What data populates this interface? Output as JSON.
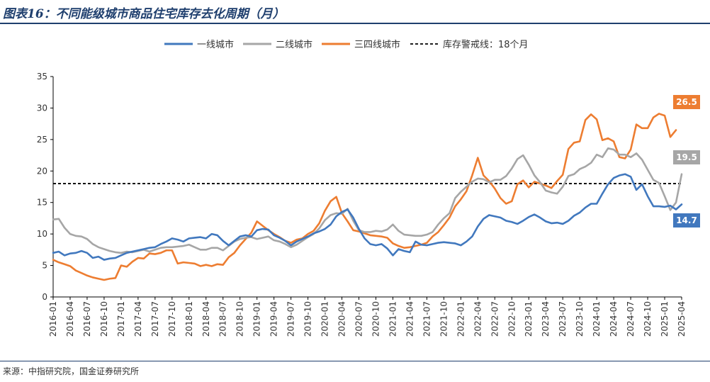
{
  "page": {
    "title": "图表16：不同能级城市商品住宅库存去化周期（月）",
    "source": "来源：中指研究院，国金证券研究所"
  },
  "chart_data": {
    "type": "line",
    "title": "图表16：不同能级城市商品住宅库存去化周期（月）",
    "xlabel": "",
    "ylabel": "",
    "ylim": [
      0,
      35
    ],
    "yticks": [
      0,
      5,
      10,
      15,
      20,
      25,
      30,
      35
    ],
    "grid": false,
    "legend_position": "top-center",
    "x_start": "2016-01",
    "x_tick_labels": [
      "2016-01",
      "2016-04",
      "2016-07",
      "2016-10",
      "2017-01",
      "2017-04",
      "2017-07",
      "2017-10",
      "2018-01",
      "2018-04",
      "2018-07",
      "2018-10",
      "2019-01",
      "2019-04",
      "2019-07",
      "2019-10",
      "2020-01",
      "2020-04",
      "2020-07",
      "2020-10",
      "2021-01",
      "2021-04",
      "2021-07",
      "2021-10",
      "2022-01",
      "2022-04",
      "2022-07",
      "2022-10",
      "2023-01",
      "2023-04",
      "2023-07",
      "2023-10",
      "2024-01",
      "2024-04",
      "2024-07",
      "2024-10",
      "2025-01",
      "2025-04"
    ],
    "threshold": {
      "name": "库存警戒线：18个月",
      "value": 18,
      "color": "#000000"
    },
    "series": [
      {
        "name": "一线城市",
        "color": "#4178be",
        "end_label": "14.7",
        "values": [
          7.0,
          7.2,
          6.6,
          6.9,
          7.0,
          7.3,
          7.0,
          6.2,
          6.4,
          5.9,
          6.1,
          6.2,
          6.6,
          7.0,
          7.2,
          7.4,
          7.6,
          7.8,
          7.9,
          8.4,
          8.8,
          9.3,
          9.1,
          8.8,
          9.3,
          9.4,
          9.5,
          9.3,
          10.0,
          9.8,
          8.9,
          8.2,
          8.9,
          9.6,
          9.8,
          9.6,
          10.6,
          10.8,
          10.7,
          9.8,
          9.4,
          8.9,
          8.2,
          8.8,
          9.2,
          9.6,
          10.1,
          10.4,
          10.8,
          11.5,
          12.8,
          13.5,
          13.9,
          12.6,
          10.8,
          9.3,
          8.4,
          8.2,
          8.4,
          7.7,
          6.6,
          7.6,
          7.3,
          7.1,
          8.8,
          8.3,
          8.2,
          8.4,
          8.6,
          8.7,
          8.6,
          8.5,
          8.2,
          8.8,
          9.6,
          11.2,
          12.4,
          13.0,
          12.8,
          12.6,
          12.1,
          11.9,
          11.6,
          12.1,
          12.7,
          13.1,
          12.6,
          12.0,
          11.7,
          11.8,
          11.6,
          12.1,
          12.9,
          13.4,
          14.2,
          14.8,
          14.8,
          16.4,
          17.9,
          18.9,
          19.3,
          19.5,
          19.1,
          17.0,
          17.9,
          16.0,
          14.4,
          14.4,
          14.3,
          14.5,
          13.9,
          14.7
        ]
      },
      {
        "name": "二线城市",
        "color": "#a6a6a6",
        "end_label": "19.5",
        "values": [
          12.3,
          12.4,
          11.0,
          10.0,
          9.7,
          9.6,
          9.2,
          8.4,
          7.9,
          7.6,
          7.3,
          7.1,
          7.0,
          7.2,
          7.1,
          7.3,
          7.5,
          7.2,
          7.5,
          7.8,
          7.9,
          7.9,
          8.0,
          8.1,
          8.3,
          7.9,
          7.5,
          7.5,
          7.8,
          7.8,
          7.4,
          8.1,
          8.8,
          9.2,
          9.4,
          9.5,
          9.2,
          9.4,
          9.6,
          9.0,
          8.8,
          8.4,
          7.9,
          8.3,
          8.9,
          9.5,
          10.0,
          10.9,
          12.2,
          13.0,
          13.3,
          13.2,
          14.0,
          12.1,
          10.6,
          10.3,
          10.3,
          10.5,
          10.4,
          10.7,
          11.5,
          10.5,
          9.9,
          9.8,
          9.7,
          9.7,
          9.9,
          10.3,
          11.5,
          12.5,
          13.3,
          15.7,
          16.7,
          17.5,
          18.3,
          18.8,
          18.7,
          18.2,
          18.6,
          18.6,
          19.2,
          20.4,
          21.9,
          22.5,
          21.0,
          19.3,
          18.2,
          16.9,
          16.6,
          16.4,
          17.5,
          19.2,
          19.5,
          20.3,
          20.7,
          21.3,
          22.6,
          22.2,
          23.6,
          23.4,
          22.6,
          22.6,
          22.2,
          22.8,
          21.8,
          20.2,
          18.6,
          18.1,
          16.0,
          13.8,
          15.0,
          19.5
        ]
      },
      {
        "name": "三四线城市",
        "color": "#ed7d31",
        "end_label": "26.5",
        "values": [
          5.9,
          5.5,
          5.2,
          4.9,
          4.2,
          3.8,
          3.4,
          3.1,
          2.9,
          2.7,
          2.9,
          3.0,
          5.0,
          4.8,
          5.6,
          6.2,
          6.1,
          6.9,
          6.8,
          7.0,
          7.4,
          7.4,
          5.3,
          5.5,
          5.4,
          5.3,
          4.9,
          5.1,
          4.9,
          5.2,
          5.1,
          6.3,
          7.0,
          8.2,
          9.2,
          10.2,
          12.0,
          11.3,
          10.6,
          10.0,
          9.5,
          8.9,
          8.6,
          9.1,
          9.3,
          10.0,
          10.5,
          11.7,
          13.7,
          15.2,
          15.9,
          13.3,
          12.0,
          10.6,
          10.4,
          10.1,
          9.8,
          9.7,
          9.6,
          9.4,
          8.5,
          8.1,
          7.8,
          7.9,
          8.1,
          8.3,
          8.6,
          9.6,
          10.3,
          11.4,
          12.6,
          14.4,
          15.5,
          16.8,
          19.3,
          22.1,
          19.3,
          18.4,
          17.2,
          15.7,
          14.8,
          15.2,
          17.9,
          18.5,
          17.4,
          18.3,
          18.0,
          17.7,
          17.3,
          18.4,
          19.4,
          23.5,
          24.5,
          24.7,
          28.1,
          29.0,
          28.2,
          24.9,
          25.2,
          24.7,
          22.2,
          22.0,
          23.4,
          27.4,
          26.8,
          26.8,
          28.5,
          29.1,
          28.8,
          25.4,
          26.5
        ]
      }
    ]
  }
}
